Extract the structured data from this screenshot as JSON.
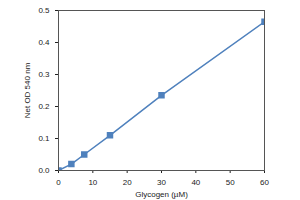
{
  "chart_data": {
    "type": "line",
    "x": [
      0,
      3.75,
      7.5,
      15,
      30,
      60
    ],
    "values": [
      0,
      0.02,
      0.05,
      0.11,
      0.235,
      0.465
    ],
    "color": "#4f81bd",
    "marker": "square",
    "xlabel": "Glycogen (µM)",
    "ylabel": "Net OD 540 nm",
    "xlim": [
      0,
      60
    ],
    "xticks": [
      0,
      10,
      20,
      30,
      40,
      50,
      60
    ],
    "ylim": [
      0,
      0.5
    ],
    "yticks": [
      {
        "value": 0,
        "label": "0.0"
      },
      0.1,
      0.2,
      0.3,
      0.4,
      0.5
    ],
    "grid": false
  }
}
